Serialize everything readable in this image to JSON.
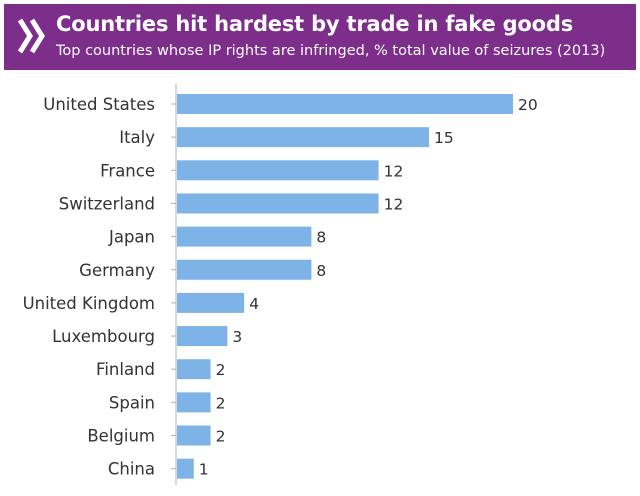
{
  "header": {
    "title": "Countries hit hardest by trade in fake goods",
    "subtitle": "Top countries whose IP rights are infringed, % total value of seizures (2013)",
    "icon": "double-chevron-right-icon",
    "background_color": "#7d2e8b"
  },
  "chart_data": {
    "type": "bar",
    "orientation": "horizontal",
    "title": "Countries hit hardest by trade in fake goods",
    "subtitle": "Top countries whose IP rights are infringed, % total value of seizures (2013)",
    "categories": [
      "United States",
      "Italy",
      "France",
      "Switzerland",
      "Japan",
      "Germany",
      "United Kingdom",
      "Luxembourg",
      "Finland",
      "Spain",
      "Belgium",
      "China"
    ],
    "values": [
      20,
      15,
      12,
      12,
      8,
      8,
      4,
      3,
      2,
      2,
      2,
      1
    ],
    "data_labels": [
      "20",
      "15",
      "12",
      "12",
      "8",
      "8",
      "4",
      "3",
      "2",
      "2",
      "2",
      "1"
    ],
    "xlim": [
      0,
      20
    ],
    "grid": false,
    "legend": "none",
    "bar_color": "#7eb3e8",
    "axis_color": "#b0b0b0",
    "label_color": "#333333"
  }
}
